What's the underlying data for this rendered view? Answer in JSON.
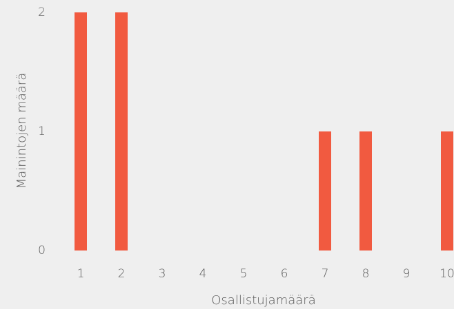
{
  "chart_data": {
    "type": "bar",
    "x_label": "Osallistujamäärä",
    "y_label": "Mainintojen määrä",
    "categories": [
      "1",
      "2",
      "3",
      "4",
      "5",
      "6",
      "7",
      "8",
      "9",
      "10"
    ],
    "values": [
      2,
      2,
      0,
      0,
      0,
      0,
      1,
      1,
      0,
      1
    ],
    "color": "#f15a40",
    "ylim": [
      0,
      2
    ],
    "yticks": [
      0,
      1,
      2
    ],
    "grid": false
  }
}
